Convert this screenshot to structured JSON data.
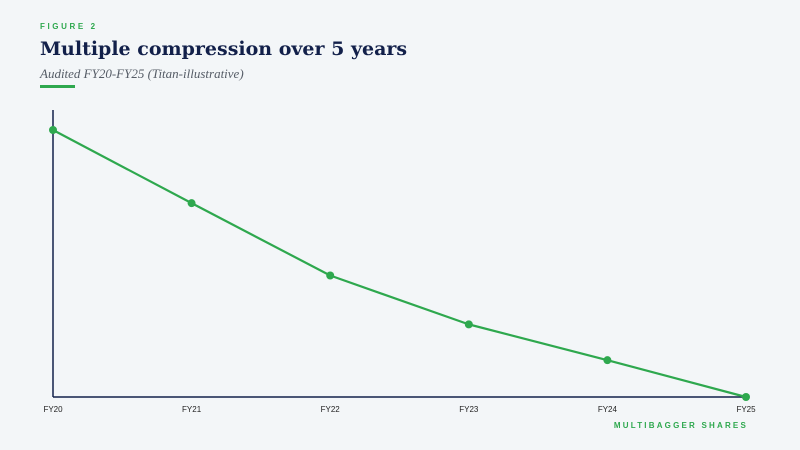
{
  "figure_label": "FIGURE 2",
  "title": "Multiple compression over 5 years",
  "subtitle": "Audited FY20-FY25 (Titan-illustrative)",
  "source": "MULTIBAGGER SHARES",
  "colors": {
    "accent": "#2ea84e",
    "title": "#12204a",
    "axis": "#12204a",
    "background": "#f3f6f8"
  },
  "chart_data": {
    "type": "line",
    "title": "Multiple compression over 5 years",
    "subtitle": "Audited FY20-FY25 (Titan-illustrative)",
    "categories": [
      "FY20",
      "FY21",
      "FY22",
      "FY23",
      "FY24",
      "FY25"
    ],
    "series": [
      {
        "values": [
          100,
          72.6,
          45.5,
          27.2,
          13.8,
          0
        ]
      }
    ],
    "ylim": [
      0,
      100
    ],
    "y_ticks_shown": false,
    "grid": false,
    "legend": "none",
    "markers": true
  }
}
